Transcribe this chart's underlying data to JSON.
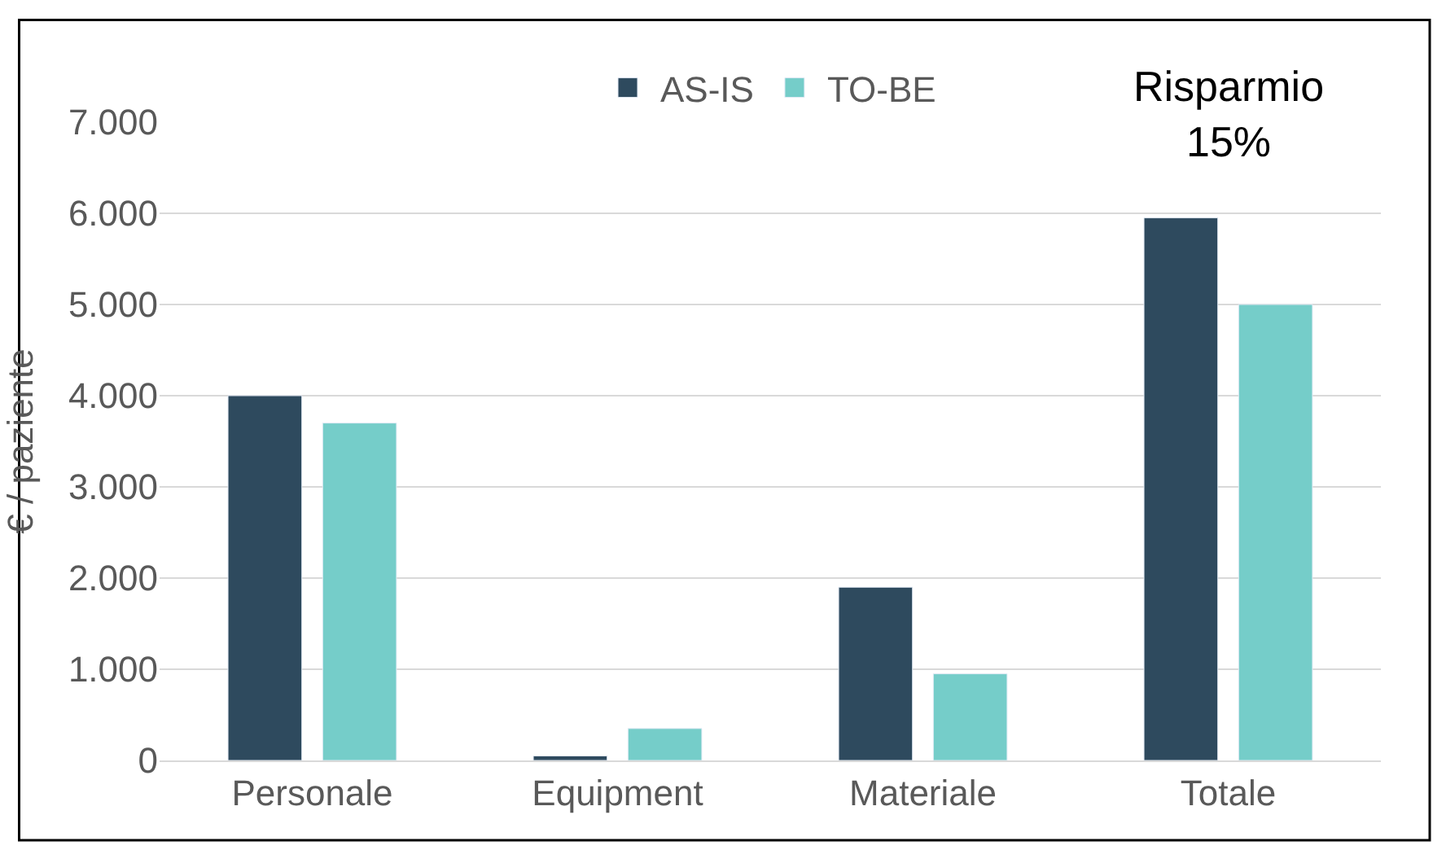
{
  "chart_data": {
    "type": "bar",
    "ylabel": "€ / paziente",
    "categories": [
      "Personale",
      "Equipment",
      "Materiale",
      "Totale"
    ],
    "series": [
      {
        "name": "AS-IS",
        "color": "#2e4a5e",
        "values": [
          4000,
          50,
          1900,
          5950
        ]
      },
      {
        "name": "TO-BE",
        "color": "#75cdc9",
        "values": [
          3700,
          350,
          950,
          5000
        ]
      }
    ],
    "ylim": [
      0,
      7000
    ],
    "yticks": [
      {
        "value": 0,
        "label": "0"
      },
      {
        "value": 1000,
        "label": "1.000"
      },
      {
        "value": 2000,
        "label": "2.000"
      },
      {
        "value": 3000,
        "label": "3.000"
      },
      {
        "value": 4000,
        "label": "4.000"
      },
      {
        "value": 5000,
        "label": "5.000"
      },
      {
        "value": 6000,
        "label": "6.000"
      },
      {
        "value": 7000,
        "label": "7.000"
      }
    ],
    "grid": "y",
    "legend": "top",
    "annotations": [
      "Risparmio\n15%"
    ]
  }
}
